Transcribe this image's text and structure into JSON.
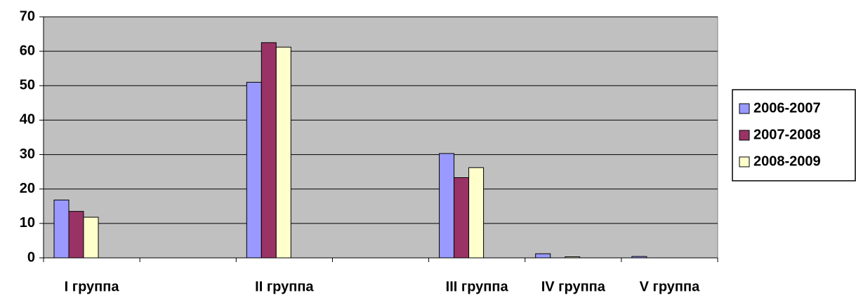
{
  "chart_data": {
    "type": "bar",
    "categories": [
      "I группа",
      null,
      "II группа",
      null,
      "III группа",
      "IV группа",
      "V группа"
    ],
    "series": [
      {
        "name": "2006-2007",
        "color": "#9999ff",
        "values": [
          16.8,
          null,
          51,
          null,
          30.3,
          1.2,
          0.4
        ]
      },
      {
        "name": "2007-2008",
        "color": "#993366",
        "values": [
          13.5,
          null,
          62.5,
          null,
          23.3,
          0,
          0
        ]
      },
      {
        "name": "2008-2009",
        "color": "#ffffcc",
        "values": [
          11.8,
          null,
          61.2,
          null,
          26.2,
          0.3,
          0
        ]
      }
    ],
    "ylim": [
      0,
      70
    ],
    "yticks": [
      0,
      10,
      20,
      30,
      40,
      50,
      60,
      70
    ],
    "grid": true,
    "legend": "right",
    "background": "#c0c0c0"
  }
}
